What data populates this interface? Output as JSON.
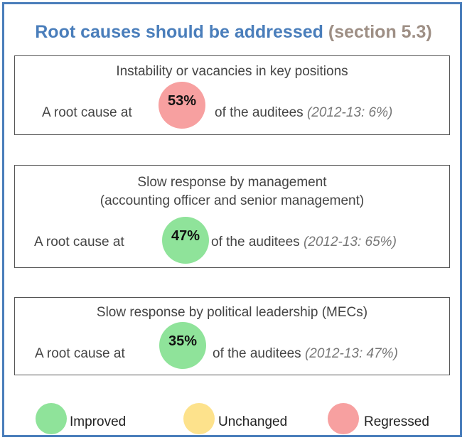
{
  "title": {
    "main": "Root causes should be addressed",
    "section": "(section 5.3)"
  },
  "colors": {
    "improved": "#8fe39a",
    "unchanged": "#fde28c",
    "regressed": "#f7a0a0",
    "title_blue": "#4a7ebb",
    "border": "#4a7ebb"
  },
  "causes": [
    {
      "heading_lines": [
        "Instability or vacancies in key positions"
      ],
      "prefix": "A root cause at",
      "percent": "53%",
      "suffix": "of the auditees",
      "prior": "(2012-13: 6%)",
      "status": "regressed"
    },
    {
      "heading_lines": [
        "Slow response by management",
        "(accounting officer and senior management)"
      ],
      "prefix": "A root cause at",
      "percent": "47%",
      "suffix": "of the auditees",
      "prior": "(2012-13: 65%)",
      "status": "improved"
    },
    {
      "heading_lines": [
        "Slow response by political leadership (MECs)"
      ],
      "prefix": "A root cause at",
      "percent": "35%",
      "suffix": "of the auditees",
      "prior": "(2012-13: 47%)",
      "status": "improved"
    }
  ],
  "legend": [
    {
      "label": "Improved",
      "status": "improved"
    },
    {
      "label": "Unchanged",
      "status": "unchanged"
    },
    {
      "label": "Regressed",
      "status": "regressed"
    }
  ]
}
